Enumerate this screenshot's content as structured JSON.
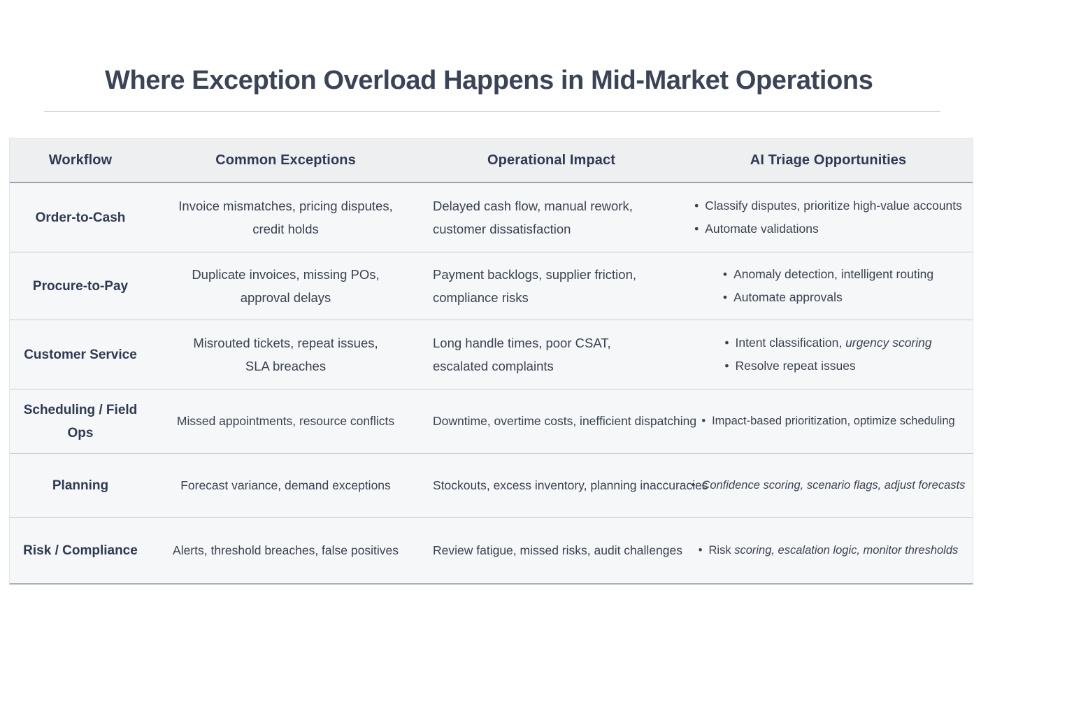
{
  "page": {
    "title": "Where Exception Overload Happens in Mid-Market Operations"
  },
  "colors": {
    "title_text": "#3b4456",
    "header_text": "#2f3a52",
    "body_text": "#3a4251",
    "table_bg": "#f6f7f8",
    "header_bg": "#eeeff0",
    "header_divider": "#9aa0ac",
    "row_divider": "#c9cbd1",
    "table_bottom_border": "#abb0bc",
    "title_divider": "#d6d8dc"
  },
  "table": {
    "bullet": "•",
    "columns": [
      "Workflow",
      "Common Exceptions",
      "Operational Impact",
      "AI Triage Opportunities"
    ],
    "rows": [
      {
        "workflow": "Order-to-Cash",
        "exceptions": [
          "Invoice mismatches, pricing disputes,",
          "credit holds"
        ],
        "impact": [
          "Delayed cash flow, manual rework,",
          "customer dissatisfaction"
        ],
        "triage": [
          {
            "segments": [
              {
                "text": "Classify disputes, prioritize high-value accounts",
                "italic": false
              }
            ]
          },
          {
            "segments": [
              {
                "text": "Automate validations",
                "italic": false
              }
            ]
          }
        ]
      },
      {
        "workflow": "Procure-to-Pay",
        "exceptions": [
          "Duplicate invoices, missing POs,",
          "approval delays"
        ],
        "impact": [
          "Payment backlogs, supplier friction,",
          "compliance risks"
        ],
        "triage": [
          {
            "segments": [
              {
                "text": "Anomaly detection, intelligent routing",
                "italic": false
              }
            ]
          },
          {
            "segments": [
              {
                "text": "Automate approvals",
                "italic": false
              }
            ]
          }
        ]
      },
      {
        "workflow": "Customer Service",
        "exceptions": [
          "Misrouted tickets, repeat issues,",
          "SLA breaches"
        ],
        "impact": [
          "Long handle times, poor CSAT,",
          "escalated complaints"
        ],
        "triage": [
          {
            "segments": [
              {
                "text": "Intent classification, ",
                "italic": false
              },
              {
                "text": "urgency scoring",
                "italic": true
              }
            ]
          },
          {
            "segments": [
              {
                "text": "Resolve repeat issues",
                "italic": false
              }
            ]
          }
        ]
      },
      {
        "workflow": "Scheduling / Field Ops",
        "exceptions": [
          "Missed appointments, resource conflicts"
        ],
        "impact": [
          "Downtime, overtime costs, inefficient dispatching"
        ],
        "triage": [
          {
            "segments": [
              {
                "text": "Impact-based prioritization, optimize scheduling",
                "italic": false
              }
            ]
          }
        ]
      },
      {
        "workflow": "Planning",
        "exceptions": [
          "Forecast variance, demand exceptions"
        ],
        "impact": [
          "Stockouts, excess inventory, planning inaccuracies"
        ],
        "triage": [
          {
            "segments": [
              {
                "text": "Confidence scoring, scenario flags, adjust forecasts",
                "italic": true
              }
            ]
          }
        ]
      },
      {
        "workflow": "Risk / Compliance",
        "exceptions": [
          "Alerts, threshold breaches, false positives"
        ],
        "impact": [
          "Review fatigue, missed risks, audit challenges"
        ],
        "triage": [
          {
            "segments": [
              {
                "text": "Risk ",
                "italic": false
              },
              {
                "text": "scoring, escalation logic, monitor thresholds",
                "italic": true
              }
            ]
          }
        ]
      }
    ]
  }
}
